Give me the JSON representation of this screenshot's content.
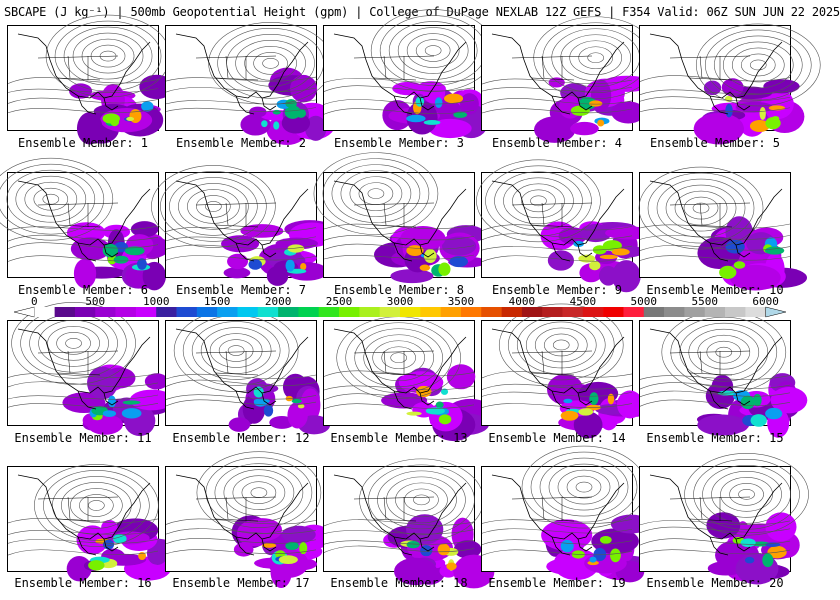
{
  "title": "SBCAPE (J kg⁻¹) | 500mb Geopotential Height (gpm) | College of DuPage NEXLAB 12Z GEFS | F354 Valid: 06Z SUN JUN 22 2025",
  "panel_label_prefix": "Ensemble Member: ",
  "members": [
    1,
    2,
    3,
    4,
    5,
    6,
    7,
    8,
    9,
    10,
    11,
    12,
    13,
    14,
    15,
    16,
    17,
    18,
    19,
    20
  ],
  "colorbar": {
    "ticks": [
      "0",
      "500",
      "1000",
      "1500",
      "2000",
      "2500",
      "3000",
      "3500",
      "4000",
      "4500",
      "5000",
      "5500",
      "6000"
    ],
    "colors": [
      "#ffffff",
      "#5a0a8c",
      "#7a00b4",
      "#9a00d2",
      "#b400e6",
      "#c800ff",
      "#3a1fa0",
      "#1e4bd2",
      "#0a74e6",
      "#0a9ff0",
      "#00c8f0",
      "#10e0d0",
      "#00b46e",
      "#00d250",
      "#32e61e",
      "#78f000",
      "#aaf01e",
      "#d2f03c",
      "#f0e600",
      "#ffc800",
      "#ffa000",
      "#ff7800",
      "#e65000",
      "#c82800",
      "#a01414",
      "#b41e1e",
      "#c82828",
      "#dc1414",
      "#f00000",
      "#ff1e3c",
      "#787878",
      "#8c8c8c",
      "#a0a0a0",
      "#b4b4b4",
      "#c8c8c8",
      "#dcdcdc"
    ]
  }
}
